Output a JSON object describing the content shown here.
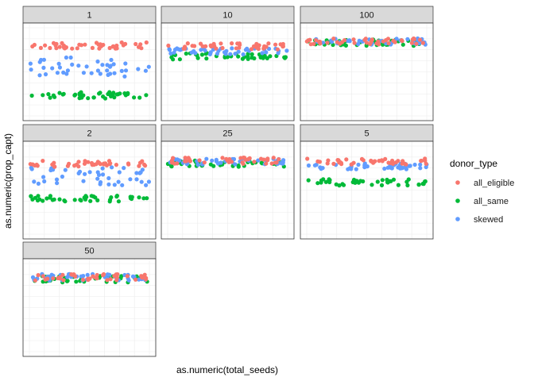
{
  "chart_data": {
    "type": "scatter",
    "xlabel": "as.numeric(total_seeds)",
    "ylabel": "as.numeric(prop_capt)",
    "grid": true,
    "facet_order": [
      "1",
      "10",
      "100",
      "2",
      "25",
      "5",
      "50"
    ],
    "legend": {
      "title": "donor_type",
      "placement": "right",
      "entries": [
        "all_eligible",
        "all_same",
        "skewed"
      ]
    },
    "series": [
      {
        "name": "all_eligible",
        "color": "#F8766D"
      },
      {
        "name": "all_same",
        "color": "#00BA38"
      },
      {
        "name": "skewed",
        "color": "#619CFF"
      }
    ],
    "facet_levels": {
      "1": {
        "all_eligible": 0.77,
        "all_same": 0.26,
        "skewed": 0.55
      },
      "10": {
        "all_eligible": 0.76,
        "all_same": 0.66,
        "skewed": 0.71
      },
      "100": {
        "all_eligible": 0.81,
        "all_same": 0.8,
        "skewed": 0.81
      },
      "2": {
        "all_eligible": 0.77,
        "all_same": 0.41,
        "skewed": 0.64
      },
      "25": {
        "all_eligible": 0.8,
        "all_same": 0.77,
        "skewed": 0.79
      },
      "5": {
        "all_eligible": 0.79,
        "all_same": 0.58,
        "skewed": 0.74
      },
      "50": {
        "all_eligible": 0.81,
        "all_same": 0.79,
        "skewed": 0.81
      }
    },
    "ylim": [
      0,
      1
    ]
  }
}
